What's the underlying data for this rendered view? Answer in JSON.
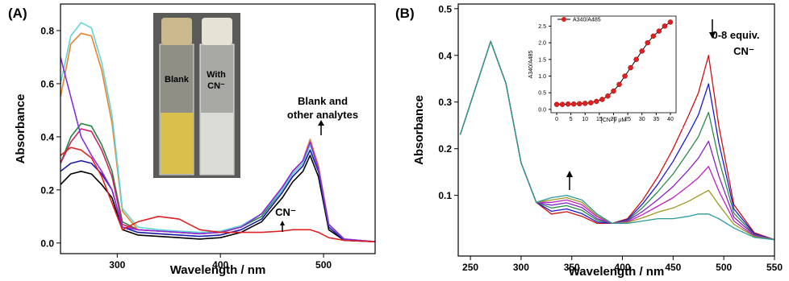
{
  "chart_data": [
    {
      "type": "line",
      "panel_label": "(A)",
      "xlabel": "Wavelength / nm",
      "ylabel": "Absorbance",
      "xlim": [
        245,
        550
      ],
      "ylim": [
        -0.04,
        0.9
      ],
      "xticks": [
        300,
        400,
        500
      ],
      "yticks": [
        {
          "value": 0,
          "label": "0.0"
        },
        0.2,
        0.4,
        0.6,
        0.8
      ],
      "photo_labels": [
        "Blank",
        "With",
        "CN⁻"
      ],
      "annotations": [
        "Blank and",
        "other analytes",
        "CN⁻"
      ],
      "x": [
        245,
        255,
        265,
        275,
        285,
        295,
        305,
        320,
        340,
        360,
        380,
        400,
        420,
        440,
        460,
        470,
        480,
        487,
        495,
        505,
        520,
        550
      ],
      "series": [
        {
          "color": "#000000",
          "values": [
            0.22,
            0.26,
            0.27,
            0.26,
            0.22,
            0.17,
            0.05,
            0.03,
            0.025,
            0.02,
            0.015,
            0.02,
            0.04,
            0.08,
            0.17,
            0.23,
            0.27,
            0.33,
            0.25,
            0.05,
            0.01,
            0.005
          ]
        },
        {
          "color": "#1a1aa8",
          "values": [
            0.27,
            0.3,
            0.31,
            0.3,
            0.26,
            0.2,
            0.06,
            0.04,
            0.035,
            0.03,
            0.025,
            0.03,
            0.05,
            0.09,
            0.19,
            0.25,
            0.29,
            0.35,
            0.27,
            0.06,
            0.01,
            0.005
          ]
        },
        {
          "color": "#1f8a3a",
          "values": [
            0.3,
            0.4,
            0.45,
            0.44,
            0.37,
            0.27,
            0.08,
            0.05,
            0.045,
            0.04,
            0.035,
            0.04,
            0.06,
            0.1,
            0.2,
            0.26,
            0.3,
            0.37,
            0.28,
            0.07,
            0.015,
            0.005
          ]
        },
        {
          "color": "#d0206a",
          "values": [
            0.3,
            0.38,
            0.43,
            0.42,
            0.35,
            0.25,
            0.07,
            0.05,
            0.045,
            0.04,
            0.035,
            0.04,
            0.06,
            0.11,
            0.21,
            0.27,
            0.31,
            0.39,
            0.29,
            0.07,
            0.015,
            0.005
          ]
        },
        {
          "color": "#e8822a",
          "values": [
            0.55,
            0.75,
            0.79,
            0.78,
            0.65,
            0.45,
            0.12,
            0.05,
            0.045,
            0.04,
            0.035,
            0.04,
            0.06,
            0.11,
            0.21,
            0.27,
            0.31,
            0.39,
            0.29,
            0.07,
            0.015,
            0.005
          ]
        },
        {
          "color": "#5fd6d6",
          "values": [
            0.6,
            0.78,
            0.83,
            0.81,
            0.68,
            0.48,
            0.13,
            0.06,
            0.05,
            0.045,
            0.04,
            0.045,
            0.065,
            0.11,
            0.2,
            0.26,
            0.3,
            0.37,
            0.28,
            0.07,
            0.015,
            0.005
          ]
        },
        {
          "color": "#8a2be2",
          "values": [
            0.7,
            0.55,
            0.4,
            0.33,
            0.27,
            0.2,
            0.06,
            0.05,
            0.045,
            0.04,
            0.035,
            0.04,
            0.06,
            0.11,
            0.21,
            0.27,
            0.31,
            0.38,
            0.28,
            0.07,
            0.015,
            0.005
          ]
        },
        {
          "color": "#e02020",
          "values": [
            0.33,
            0.36,
            0.35,
            0.32,
            0.25,
            0.15,
            0.05,
            0.08,
            0.1,
            0.09,
            0.05,
            0.04,
            0.04,
            0.04,
            0.045,
            0.05,
            0.05,
            0.05,
            0.04,
            0.02,
            0.01,
            0.005
          ]
        }
      ]
    },
    {
      "type": "line",
      "panel_label": "(B)",
      "xlabel": "Wavelength / nm",
      "ylabel": "Absorbance",
      "xlim": [
        238,
        550
      ],
      "ylim": [
        -0.03,
        0.51
      ],
      "xticks": [
        250,
        300,
        350,
        400,
        450,
        500,
        550
      ],
      "yticks": [
        0.1,
        0.2,
        0.3,
        0.4,
        0.5
      ],
      "annotations": [
        "0-8 equiv.",
        "CN⁻"
      ],
      "x": [
        240,
        255,
        270,
        285,
        300,
        315,
        330,
        345,
        360,
        375,
        390,
        405,
        420,
        435,
        450,
        465,
        475,
        485,
        495,
        510,
        530,
        550
      ],
      "series": [
        {
          "color": "#d01010",
          "values": [
            0.23,
            0.33,
            0.43,
            0.34,
            0.17,
            0.085,
            0.06,
            0.065,
            0.055,
            0.04,
            0.04,
            0.05,
            0.09,
            0.14,
            0.2,
            0.27,
            0.32,
            0.4,
            0.25,
            0.08,
            0.02,
            0.005
          ]
        },
        {
          "color": "#1a1ad0",
          "values": [
            0.23,
            0.33,
            0.43,
            0.34,
            0.17,
            0.085,
            0.066,
            0.071,
            0.061,
            0.043,
            0.04,
            0.048,
            0.082,
            0.124,
            0.173,
            0.231,
            0.273,
            0.339,
            0.214,
            0.071,
            0.018,
            0.005
          ]
        },
        {
          "color": "#2a8a4a",
          "values": [
            0.23,
            0.33,
            0.43,
            0.34,
            0.17,
            0.085,
            0.073,
            0.078,
            0.068,
            0.047,
            0.04,
            0.046,
            0.074,
            0.108,
            0.146,
            0.193,
            0.226,
            0.278,
            0.178,
            0.062,
            0.016,
            0.005
          ]
        },
        {
          "color": "#8a20c0",
          "values": [
            0.23,
            0.33,
            0.43,
            0.34,
            0.17,
            0.085,
            0.079,
            0.084,
            0.074,
            0.05,
            0.04,
            0.045,
            0.066,
            0.091,
            0.119,
            0.154,
            0.18,
            0.216,
            0.142,
            0.053,
            0.015,
            0.005
          ]
        },
        {
          "color": "#c020c0",
          "values": [
            0.23,
            0.33,
            0.43,
            0.34,
            0.17,
            0.085,
            0.085,
            0.09,
            0.08,
            0.054,
            0.04,
            0.043,
            0.059,
            0.077,
            0.095,
            0.12,
            0.138,
            0.162,
            0.11,
            0.045,
            0.013,
            0.005
          ]
        },
        {
          "color": "#9a9a20",
          "values": [
            0.23,
            0.33,
            0.43,
            0.34,
            0.17,
            0.085,
            0.09,
            0.095,
            0.085,
            0.057,
            0.04,
            0.042,
            0.052,
            0.064,
            0.073,
            0.087,
            0.099,
            0.111,
            0.08,
            0.038,
            0.012,
            0.005
          ]
        },
        {
          "color": "#2a9a9a",
          "values": [
            0.23,
            0.33,
            0.43,
            0.34,
            0.17,
            0.085,
            0.095,
            0.1,
            0.09,
            0.06,
            0.04,
            0.04,
            0.045,
            0.05,
            0.05,
            0.055,
            0.06,
            0.06,
            0.05,
            0.03,
            0.01,
            0.005
          ]
        }
      ]
    },
    {
      "type": "line",
      "markers": true,
      "xlabel": "[CN⁻]/ µM",
      "ylabel": "A340/A485",
      "xlim": [
        -2,
        42
      ],
      "ylim": [
        -0.1,
        2.8
      ],
      "xticks": [
        0,
        5,
        10,
        15,
        20,
        25,
        30,
        35,
        40
      ],
      "yticks": [
        {
          "value": 0,
          "label": "0.0"
        },
        0.5,
        {
          "value": 1,
          "label": "1.0"
        },
        1.5,
        {
          "value": 2,
          "label": "2.0"
        },
        2.5
      ],
      "x": [
        0,
        2,
        4,
        6,
        8,
        10,
        12,
        14,
        16,
        18,
        20,
        22,
        24,
        26,
        28,
        30,
        32,
        34,
        36,
        38,
        40
      ],
      "series": [
        {
          "name": "A340/A485",
          "color": "#e02020",
          "values": [
            0.15,
            0.15,
            0.16,
            0.16,
            0.17,
            0.18,
            0.2,
            0.24,
            0.3,
            0.4,
            0.55,
            0.75,
            1.0,
            1.25,
            1.5,
            1.75,
            2.0,
            2.2,
            2.35,
            2.5,
            2.62
          ]
        }
      ]
    }
  ]
}
